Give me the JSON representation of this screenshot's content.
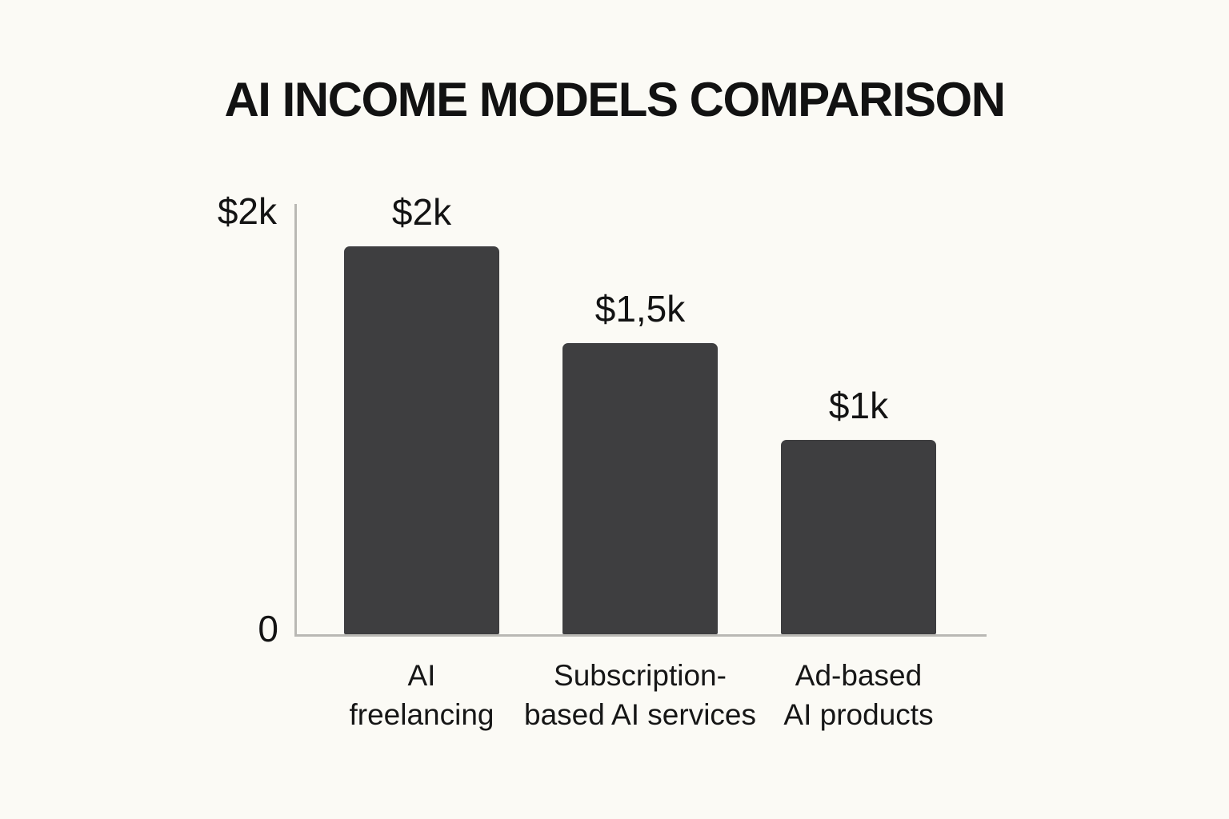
{
  "page": {
    "background_color": "#fbfaf5"
  },
  "chart_data": {
    "type": "bar",
    "title": "AI INCOME MODELS COMPARISON",
    "categories": [
      "AI\nfreelancing",
      "Subscription-\nbased AI services",
      "Ad-based\nAI products"
    ],
    "values": [
      2000,
      1500,
      1000
    ],
    "value_labels": [
      "$2k",
      "$1,5k",
      "$1k"
    ],
    "xlabel": "",
    "ylabel": "",
    "ylim": [
      0,
      2000
    ],
    "y_ticks": [
      {
        "label": "$2k",
        "value": 2000
      },
      {
        "label": "0",
        "value": 0
      }
    ],
    "grid": false,
    "legend": false,
    "bar_color": "#3e3e40",
    "axis_color": "#b9b8b4",
    "text_color": "#141414"
  }
}
